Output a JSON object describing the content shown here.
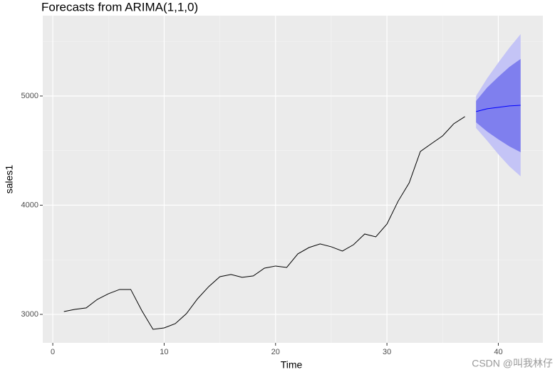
{
  "chart_data": {
    "type": "forecast",
    "title": "Forecasts from ARIMA(1,1,0)",
    "x_label": "Time",
    "y_label": "sales1",
    "watermark": "CSDN @叫我林仔",
    "xlim": [
      -0.9,
      44
    ],
    "xticks": [
      0,
      10,
      20,
      30,
      40
    ],
    "ylim": [
      2739,
      5736
    ],
    "yticks": [
      3000,
      4000,
      5000
    ],
    "grid": true,
    "history": {
      "color": "#000000",
      "x": [
        1,
        2,
        3,
        4,
        5,
        6,
        7,
        8,
        9,
        10,
        11,
        12,
        13,
        14,
        15,
        16,
        17,
        18,
        19,
        20,
        21,
        22,
        23,
        24,
        25,
        26,
        27,
        28,
        29,
        30,
        31,
        32,
        33,
        34,
        35,
        36,
        37
      ],
      "values": [
        3026,
        3046,
        3059,
        3137,
        3189,
        3228,
        3228,
        3033,
        2863,
        2876,
        2915,
        3007,
        3143,
        3254,
        3345,
        3365,
        3339,
        3352,
        3423,
        3443,
        3430,
        3554,
        3612,
        3645,
        3619,
        3580,
        3638,
        3736,
        3710,
        3827,
        4036,
        4205,
        4492,
        4564,
        4635,
        4746,
        4811
      ]
    },
    "forecast": {
      "x": [
        38,
        39,
        40,
        41,
        42
      ],
      "mean": [
        4857,
        4883,
        4896,
        4909,
        4915
      ],
      "mean_color": "#0000ff",
      "lo80": [
        4759,
        4674,
        4603,
        4538,
        4485
      ],
      "hi80": [
        4954,
        5078,
        5176,
        5267,
        5339
      ],
      "color80": "#7f7fee",
      "lo95": [
        4707,
        4590,
        4466,
        4355,
        4264
      ],
      "hi95": [
        5000,
        5163,
        5306,
        5443,
        5567
      ],
      "color95": "#c4c4f6"
    }
  }
}
